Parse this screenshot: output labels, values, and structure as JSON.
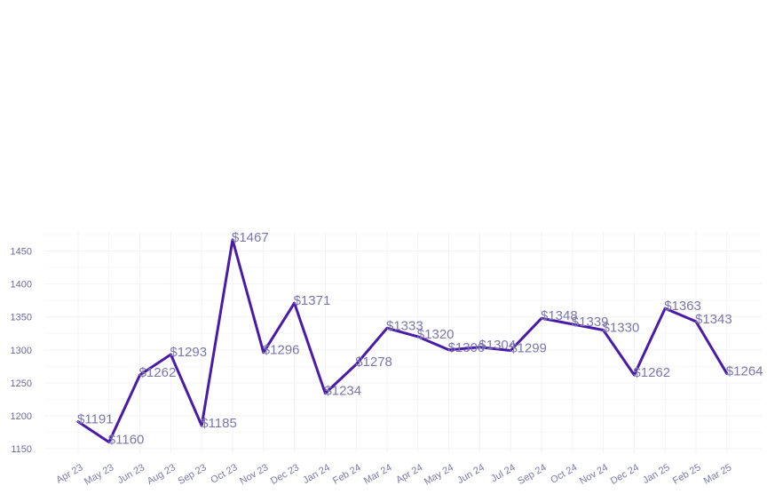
{
  "chart_data": {
    "type": "line",
    "title": "",
    "xlabel": "",
    "ylabel": "",
    "categories": [
      "Apr 23",
      "May 23",
      "Jun 23",
      "Aug 23",
      "Sep 23",
      "Oct 23",
      "Nov 23",
      "Dec 23",
      "Jan 24",
      "Feb 24",
      "Mar 24",
      "Apr 24",
      "May 24",
      "Jun 24",
      "Jul 24",
      "Sep 24",
      "Oct 24",
      "Nov 24",
      "Dec 24",
      "Jan 25",
      "Feb 25",
      "Mar 25"
    ],
    "series": [
      {
        "values": [
          1191,
          1160,
          1262,
          1293,
          1185,
          1467,
          1296,
          1371,
          1234,
          1278,
          1333,
          1320,
          1300,
          1304,
          1299,
          1348,
          1339,
          1330,
          1262,
          1363,
          1343,
          1264
        ],
        "labels": [
          "$1191",
          "$1160",
          "$1262",
          "$1293",
          "$1185",
          "$1467",
          "$1296",
          "$1371",
          "$1234",
          "$1278",
          "$1333",
          "$1320",
          "$1300",
          "$1304",
          "$1299",
          "$1348",
          "$1339",
          "$1330",
          "$1262",
          "$1363",
          "$1343",
          "$1264"
        ],
        "color": "#4a1aa8"
      }
    ],
    "yticks": [
      1150,
      1200,
      1250,
      1300,
      1350,
      1400,
      1450
    ],
    "ylim": [
      1144,
      1480
    ],
    "grid": true,
    "legend": "none"
  }
}
